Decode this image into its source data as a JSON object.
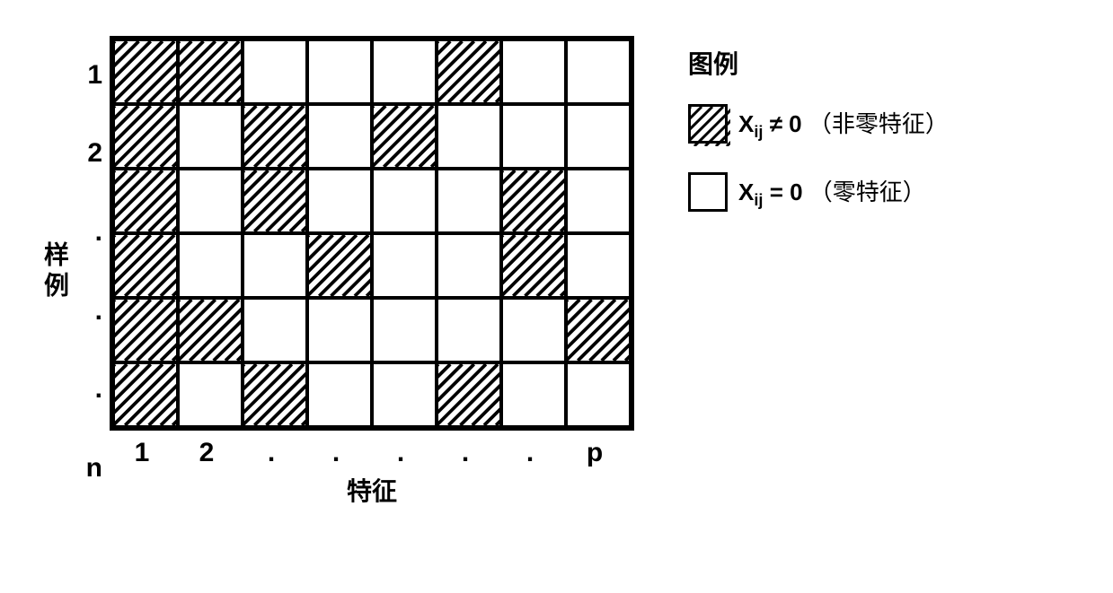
{
  "matrix": {
    "rows": 6,
    "cols": 8,
    "cell_size": 72,
    "row_labels": [
      "1",
      "2",
      ".",
      ".",
      ".",
      "n"
    ],
    "col_labels": [
      "1",
      "2",
      ".",
      ".",
      ".",
      ".",
      ".",
      "p"
    ],
    "ylabel": "样例",
    "xlabel": "特征",
    "hatched_cells": [
      [
        0,
        0
      ],
      [
        0,
        1
      ],
      [
        0,
        5
      ],
      [
        1,
        0
      ],
      [
        1,
        2
      ],
      [
        1,
        4
      ],
      [
        2,
        0
      ],
      [
        2,
        2
      ],
      [
        2,
        6
      ],
      [
        3,
        0
      ],
      [
        3,
        3
      ],
      [
        3,
        6
      ],
      [
        4,
        0
      ],
      [
        4,
        1
      ],
      [
        4,
        7
      ],
      [
        5,
        0
      ],
      [
        5,
        2
      ],
      [
        5,
        5
      ]
    ],
    "border_color": "#000000",
    "background_color": "#ffffff",
    "hatch_stroke": "#000000",
    "hatch_spacing": 14,
    "hatch_width": 4
  },
  "legend": {
    "title": "图例",
    "nonzero": {
      "symbol_var": "X",
      "symbol_sub": "ij",
      "relation": "≠ 0",
      "note": "（非零特征）"
    },
    "zero": {
      "symbol_var": "X",
      "symbol_sub": "ij",
      "relation": "= 0",
      "note": "（零特征）"
    }
  }
}
